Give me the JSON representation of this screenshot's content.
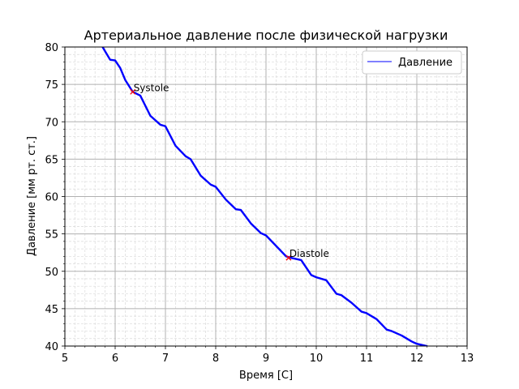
{
  "chart_data": {
    "type": "line",
    "title": "Артериальное давление после физической нагрузки",
    "xlabel": "Время [С]",
    "ylabel": "Давление [мм рт. ст.]",
    "xlim": [
      5,
      13
    ],
    "ylim": [
      40,
      80
    ],
    "xticks": [
      5,
      6,
      7,
      8,
      9,
      10,
      11,
      12,
      13
    ],
    "yticks": [
      40,
      45,
      50,
      55,
      60,
      65,
      70,
      75,
      80
    ],
    "grid": true,
    "minor_grid": true,
    "legend_position": "top-right",
    "series": [
      {
        "name": "Давление",
        "color": "#0000ff",
        "x": [
          5.75,
          5.9,
          6.0,
          6.1,
          6.2,
          6.35,
          6.5,
          6.7,
          6.9,
          7.0,
          7.2,
          7.4,
          7.5,
          7.7,
          7.9,
          8.0,
          8.2,
          8.4,
          8.5,
          8.7,
          8.9,
          9.0,
          9.2,
          9.4,
          9.5,
          9.7,
          9.9,
          10.0,
          10.2,
          10.4,
          10.5,
          10.7,
          10.9,
          11.0,
          11.2,
          11.4,
          11.5,
          11.7,
          11.9,
          12.0,
          12.2
        ],
        "y": [
          80.0,
          78.3,
          78.2,
          77.2,
          75.6,
          74.0,
          73.5,
          70.8,
          69.6,
          69.4,
          66.8,
          65.4,
          65.0,
          62.8,
          61.6,
          61.3,
          59.6,
          58.3,
          58.2,
          56.4,
          55.1,
          54.8,
          53.4,
          52.0,
          51.8,
          51.5,
          49.5,
          49.2,
          48.8,
          47.0,
          46.8,
          45.8,
          44.6,
          44.4,
          43.6,
          42.2,
          42.0,
          41.4,
          40.6,
          40.3,
          40.0
        ]
      }
    ],
    "annotations": [
      {
        "label": "Systole",
        "x": 6.35,
        "y": 74.0,
        "marker": "x",
        "marker_color": "#ff0000"
      },
      {
        "label": "Diastole",
        "x": 9.45,
        "y": 51.8,
        "marker": "x",
        "marker_color": "#ff0000"
      }
    ]
  }
}
